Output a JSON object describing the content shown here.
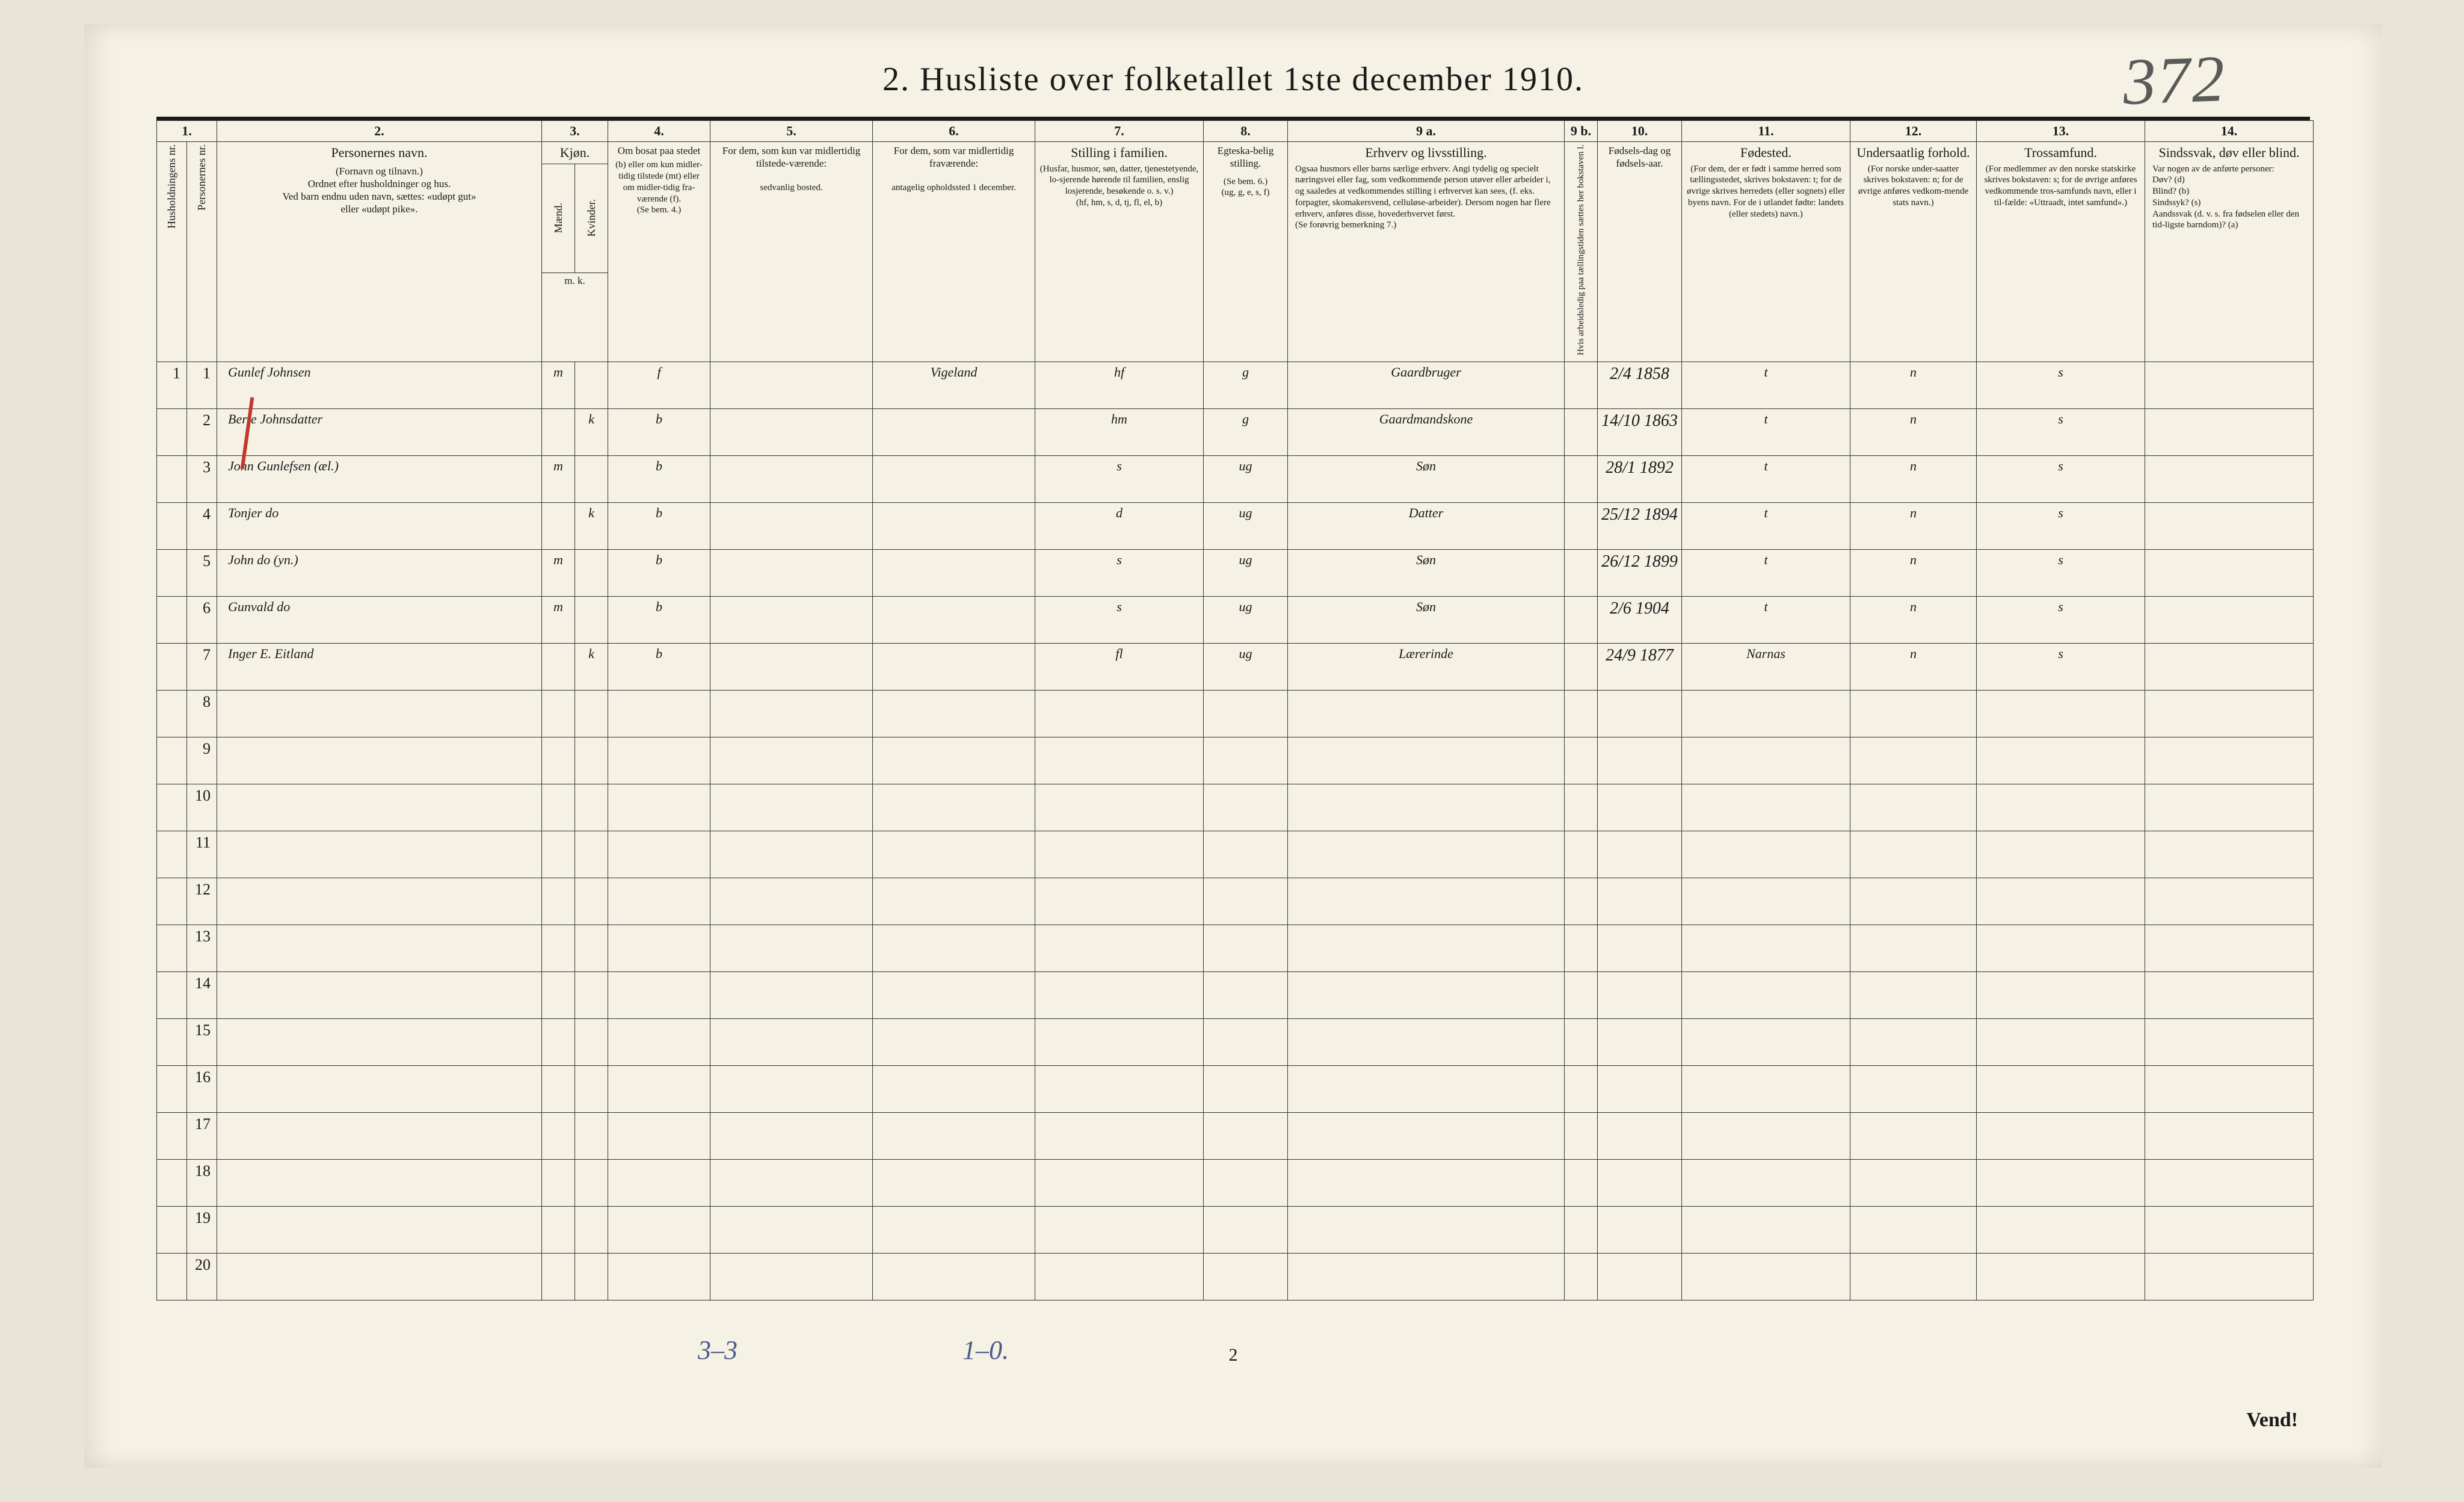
{
  "page": {
    "title": "2.   Husliste over folketallet 1ste december 1910.",
    "topRightHandwritten": "372",
    "pageNumberBottom": "2",
    "vend": "Vend!",
    "background_color": "#f5f1e4",
    "outer_background": "#e8e4d8",
    "ink_color": "#1a1a1a",
    "handwriting_color": "#3a3a52",
    "blue_pencil_color": "#4a5a8a",
    "footnotes": {
      "left": "3–3",
      "mid": "1–0."
    }
  },
  "colNumbers": [
    "1.",
    "2.",
    "3.",
    "4.",
    "5.",
    "6.",
    "7.",
    "8.",
    "9 a.",
    "9 b.",
    "10.",
    "11.",
    "12.",
    "13.",
    "14."
  ],
  "headers": {
    "c1a": "Husholdningens nr.",
    "c1b": "Personernes nr.",
    "c2": {
      "title": "Personernes navn.",
      "sub": "(Fornavn og tilnavn.)\nOrdnet efter husholdninger og hus.\nVed barn endnu uden navn, sættes: «udøpt gut»\neller «udøpt pike»."
    },
    "c3": {
      "title": "Kjøn.",
      "a": "Mænd.",
      "b": "Kvinder.",
      "mk": "m.  k."
    },
    "c4": {
      "title": "Om bosat paa stedet",
      "sub": "(b) eller om kun midler-tidig tilstede (mt) eller om midler-tidig fra-værende (f).\n(Se bem. 4.)"
    },
    "c5": {
      "title": "For dem, som kun var midlertidig tilstede-værende:",
      "sub": "sedvanlig bosted."
    },
    "c6": {
      "title": "For dem, som var midlertidig fraværende:",
      "sub": "antagelig opholdssted 1 december."
    },
    "c7": {
      "title": "Stilling i familien.",
      "sub": "(Husfar, husmor, søn, datter, tjenestetyende, lo-sjerende hørende til familien, enslig losjerende, besøkende o. s. v.)\n(hf, hm, s, d, tj, fl, el, b)"
    },
    "c8": {
      "title": "Egteska-belig stilling.",
      "sub": "(Se bem. 6.)\n(ug, g, e, s, f)"
    },
    "c9a": {
      "title": "Erhverv og livsstilling.",
      "sub": "Ogsaa husmors eller barns særlige erhverv. Angi tydelig og specielt næringsvei eller fag, som vedkommende person utøver eller arbeider i, og saaledes at vedkommendes stilling i erhvervet kan sees, (f. eks. forpagter, skomakersvend, celluløse-arbeider). Dersom nogen har flere erhverv, anføres disse, hovederhvervet først.\n(Se forøvrig bemerkning 7.)"
    },
    "c9b": "Hvis arbeidsledig paa tællingstiden sættes her bokstaven l.",
    "c10": {
      "title": "Fødsels-dag og fødsels-aar."
    },
    "c11": {
      "title": "Fødested.",
      "sub": "(For dem, der er født i samme herred som tællingsstedet, skrives bokstaven: t; for de øvrige skrives herredets (eller sognets) eller byens navn. For de i utlandet fødte: landets (eller stedets) navn.)"
    },
    "c12": {
      "title": "Undersaatlig forhold.",
      "sub": "(For norske under-saatter skrives bokstaven: n; for de øvrige anføres vedkom-mende stats navn.)"
    },
    "c13": {
      "title": "Trossamfund.",
      "sub": "(For medlemmer av den norske statskirke skrives bokstaven: s; for de øvrige anføres vedkommende tros-samfunds navn, eller i til-fælde: «Uttraadt, intet samfund».)"
    },
    "c14": {
      "title": "Sindssvak, døv eller blind.",
      "sub": "Var nogen av de anførte personer:\nDøv?        (d)\nBlind?      (b)\nSindssyk? (s)\nAandssvak (d. v. s. fra fødselen eller den tid-ligste barndom)? (a)"
    }
  },
  "rows": [
    {
      "n": "1",
      "name": "Gunlef Johnsen",
      "sex_m": "m",
      "sex_k": "",
      "res": "f",
      "c5": "",
      "c6": "Vigeland",
      "fam": "hf",
      "egte": "g",
      "erhverv": "Gaardbruger",
      "dob": "2/4 1858",
      "fsted": "t",
      "und": "n",
      "tros": "s",
      "c14": ""
    },
    {
      "n": "2",
      "name": "Berte Johnsdatter",
      "sex_m": "",
      "sex_k": "k",
      "res": "b",
      "c5": "",
      "c6": "",
      "fam": "hm",
      "egte": "g",
      "erhverv": "Gaardmandskone",
      "dob": "14/10 1863",
      "fsted": "t",
      "und": "n",
      "tros": "s",
      "c14": ""
    },
    {
      "n": "3",
      "name": "John Gunlefsen (æl.)",
      "sex_m": "m",
      "sex_k": "",
      "res": "b",
      "c5": "",
      "c6": "",
      "fam": "s",
      "egte": "ug",
      "erhverv": "Søn",
      "dob": "28/1 1892",
      "fsted": "t",
      "und": "n",
      "tros": "s",
      "c14": ""
    },
    {
      "n": "4",
      "name": "Tonjer   do",
      "sex_m": "",
      "sex_k": "k",
      "res": "b",
      "c5": "",
      "c6": "",
      "fam": "d",
      "egte": "ug",
      "erhverv": "Datter",
      "dob": "25/12 1894",
      "fsted": "t",
      "und": "n",
      "tros": "s",
      "c14": ""
    },
    {
      "n": "5",
      "name": "John   do   (yn.)",
      "sex_m": "m",
      "sex_k": "",
      "res": "b",
      "c5": "",
      "c6": "",
      "fam": "s",
      "egte": "ug",
      "erhverv": "Søn",
      "dob": "26/12 1899",
      "fsted": "t",
      "und": "n",
      "tros": "s",
      "c14": ""
    },
    {
      "n": "6",
      "name": "Gunvald   do",
      "sex_m": "m",
      "sex_k": "",
      "res": "b",
      "c5": "",
      "c6": "",
      "fam": "s",
      "egte": "ug",
      "erhverv": "Søn",
      "dob": "2/6 1904",
      "fsted": "t",
      "und": "n",
      "tros": "s",
      "c14": ""
    },
    {
      "n": "7",
      "name": "Inger E. Eitland",
      "sex_m": "",
      "sex_k": "k",
      "res": "b",
      "c5": "",
      "c6": "",
      "fam": "fl",
      "egte": "ug",
      "erhverv": "Lærerinde",
      "dob": "24/9 1877",
      "fsted": "Narnas",
      "und": "n",
      "tros": "s",
      "c14": ""
    }
  ],
  "emptyRows": [
    "8",
    "9",
    "10",
    "11",
    "12",
    "13",
    "14",
    "15",
    "16",
    "17",
    "18",
    "19",
    "20"
  ]
}
